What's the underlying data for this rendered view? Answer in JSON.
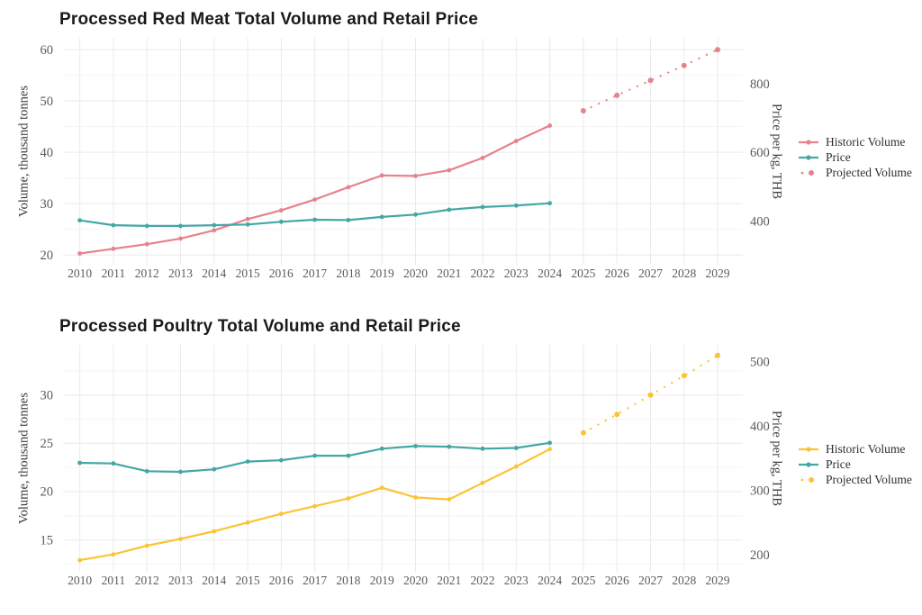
{
  "colors": {
    "red_meat_series": "#E6828B",
    "poultry_series": "#FBC434",
    "price_series": "#44A7A5",
    "grid_major": "#EAEAEA",
    "grid_minor": "#F4F4F4",
    "title_text": "#1A1A1A",
    "tick_text": "#5B5B5B"
  },
  "chart_data": [
    {
      "type": "line",
      "title": "Processed Red Meat Total Volume and Retail Price",
      "ylabel_left": "Volume, thousand tonnes",
      "ylabel_right": "Price per kg, THB",
      "xlim": [
        2009.5,
        2029.75
      ],
      "ylim_left": [
        18.1,
        62.3
      ],
      "ylim_right": [
        274,
        934
      ],
      "yticks_left": [
        20,
        30,
        40,
        50,
        60
      ],
      "yticks_minor_left": [
        25,
        35,
        45,
        55
      ],
      "yticks_right": [
        400,
        600,
        800
      ],
      "xticks": [
        2010,
        2011,
        2012,
        2013,
        2014,
        2015,
        2016,
        2017,
        2018,
        2019,
        2020,
        2021,
        2022,
        2023,
        2024,
        2025,
        2026,
        2027,
        2028,
        2029
      ],
      "grid": true,
      "legend_position": "right",
      "series": [
        {
          "name": "Historic Volume",
          "axis": "left",
          "line": "solid",
          "color": "#E6828B",
          "years": [
            2010,
            2011,
            2012,
            2013,
            2014,
            2015,
            2016,
            2017,
            2018,
            2019,
            2020,
            2021,
            2022,
            2023,
            2024
          ],
          "values": [
            20.3,
            21.2,
            22.1,
            23.2,
            24.8,
            27.0,
            28.7,
            30.8,
            33.2,
            35.5,
            35.4,
            36.5,
            38.9,
            42.2,
            45.2
          ]
        },
        {
          "name": "Price",
          "axis": "right",
          "line": "solid",
          "color": "#44A7A5",
          "years": [
            2010,
            2011,
            2012,
            2013,
            2014,
            2015,
            2016,
            2017,
            2018,
            2019,
            2020,
            2021,
            2022,
            2023,
            2024
          ],
          "values": [
            403,
            389,
            387,
            387,
            389,
            391,
            399,
            405,
            404,
            413,
            420,
            434,
            442,
            446,
            453
          ]
        },
        {
          "name": "Projected Volume",
          "axis": "left",
          "line": "dotted",
          "color": "#E6828B",
          "years": [
            2025,
            2026,
            2027,
            2028,
            2029
          ],
          "values": [
            48.1,
            51.1,
            54.0,
            56.9,
            60.0
          ]
        }
      ]
    },
    {
      "type": "line",
      "title": "Processed Poultry Total Volume and Retail Price",
      "ylabel_left": "Volume, thousand tonnes",
      "ylabel_right": "Price per kg, THB",
      "xlim": [
        2009.5,
        2029.75
      ],
      "ylim_left": [
        11.7,
        35.2
      ],
      "ylim_right": [
        174,
        526
      ],
      "yticks_left": [
        15,
        20,
        25,
        30
      ],
      "yticks_minor_left": [
        12.5,
        17.5,
        22.5,
        27.5,
        32.5
      ],
      "yticks_right": [
        200,
        300,
        400,
        500
      ],
      "xticks": [
        2010,
        2011,
        2012,
        2013,
        2014,
        2015,
        2016,
        2017,
        2018,
        2019,
        2020,
        2021,
        2022,
        2023,
        2024,
        2025,
        2026,
        2027,
        2028,
        2029
      ],
      "grid": true,
      "legend_position": "right",
      "series": [
        {
          "name": "Historic Volume",
          "axis": "left",
          "line": "solid",
          "color": "#FBC434",
          "years": [
            2010,
            2011,
            2012,
            2013,
            2014,
            2015,
            2016,
            2017,
            2018,
            2019,
            2020,
            2021,
            2022,
            2023,
            2024
          ],
          "values": [
            12.9,
            13.5,
            14.4,
            15.1,
            15.9,
            16.8,
            17.7,
            18.5,
            19.3,
            20.4,
            19.4,
            19.2,
            20.9,
            22.6,
            24.4
          ]
        },
        {
          "name": "Price",
          "axis": "right",
          "line": "solid",
          "color": "#44A7A5",
          "years": [
            2010,
            2011,
            2012,
            2013,
            2014,
            2015,
            2016,
            2017,
            2018,
            2019,
            2020,
            2021,
            2022,
            2023,
            2024
          ],
          "values": [
            343,
            342,
            330,
            329,
            333,
            345,
            347,
            354,
            354,
            365,
            369,
            368,
            365,
            366,
            374
          ]
        },
        {
          "name": "Projected Volume",
          "axis": "left",
          "line": "dotted",
          "color": "#FBC434",
          "years": [
            2025,
            2026,
            2027,
            2028,
            2029
          ],
          "values": [
            26.1,
            28.0,
            30.0,
            32.0,
            34.1
          ]
        }
      ]
    }
  ]
}
